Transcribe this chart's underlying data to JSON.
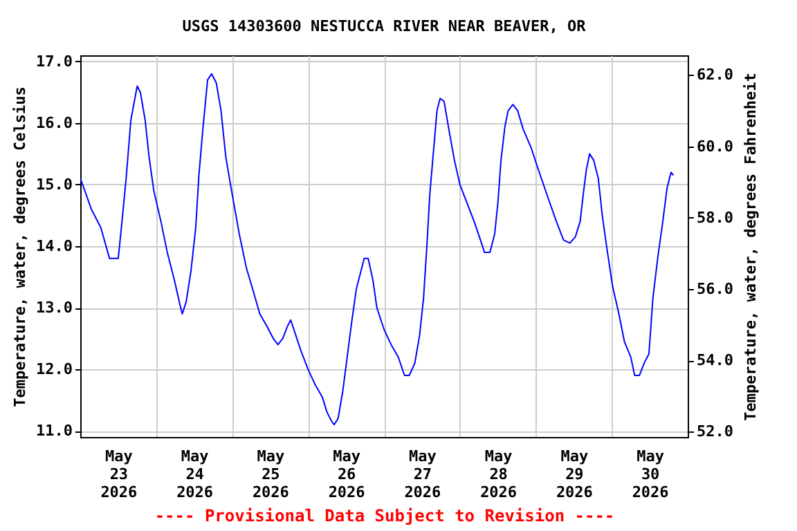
{
  "chart_data": {
    "type": "line",
    "title": "USGS 14303600 NESTUCCA RIVER NEAR BEAVER, OR",
    "ylabel": "Temperature, water, degrees Celsius",
    "y2label": "Temperature, water, degrees Fahrenheit",
    "annotations": [
      "---- Provisional Data Subject to Revision ----"
    ],
    "x": [
      "2026-05-23T00:00",
      "2026-05-23T00:45",
      "2026-05-23T03:30",
      "2026-05-23T06:30",
      "2026-05-23T09:15",
      "2026-05-23T12:00",
      "2026-05-23T13:00",
      "2026-05-23T14:30",
      "2026-05-23T16:00",
      "2026-05-23T18:00",
      "2026-05-23T19:00",
      "2026-05-23T20:30",
      "2026-05-23T21:45",
      "2026-05-23T23:15",
      "2026-05-24T01:30",
      "2026-05-24T03:30",
      "2026-05-24T05:45",
      "2026-05-24T07:30",
      "2026-05-24T08:15",
      "2026-05-24T09:30",
      "2026-05-24T11:00",
      "2026-05-24T12:30",
      "2026-05-24T13:30",
      "2026-05-24T14:45",
      "2026-05-24T16:15",
      "2026-05-24T17:30",
      "2026-05-24T19:00",
      "2026-05-24T20:30",
      "2026-05-24T22:00",
      "2026-05-25T00:00",
      "2026-05-25T02:15",
      "2026-05-25T04:30",
      "2026-05-25T06:30",
      "2026-05-25T08:45",
      "2026-05-25T11:00",
      "2026-05-25T13:00",
      "2026-05-25T14:30",
      "2026-05-25T16:00",
      "2026-05-25T17:30",
      "2026-05-25T18:30",
      "2026-05-25T19:30",
      "2026-05-25T21:45",
      "2026-05-26T00:00",
      "2026-05-26T02:15",
      "2026-05-26T04:30",
      "2026-05-26T06:00",
      "2026-05-26T07:30",
      "2026-05-26T08:15",
      "2026-05-26T09:30",
      "2026-05-26T11:00",
      "2026-05-26T12:30",
      "2026-05-26T13:45",
      "2026-05-26T15:15",
      "2026-05-26T16:45",
      "2026-05-26T17:45",
      "2026-05-26T19:00",
      "2026-05-26T20:30",
      "2026-05-26T21:45",
      "2026-05-27T00:00",
      "2026-05-27T02:15",
      "2026-05-27T04:30",
      "2026-05-27T06:30",
      "2026-05-27T08:00",
      "2026-05-27T09:45",
      "2026-05-27T11:15",
      "2026-05-27T12:30",
      "2026-05-27T13:30",
      "2026-05-27T14:30",
      "2026-05-27T15:45",
      "2026-05-27T16:45",
      "2026-05-27T17:45",
      "2026-05-27T19:00",
      "2026-05-27T20:30",
      "2026-05-27T22:15",
      "2026-05-28T00:00",
      "2026-05-28T02:15",
      "2026-05-28T04:30",
      "2026-05-28T06:30",
      "2026-05-28T07:45",
      "2026-05-28T09:30",
      "2026-05-28T11:00",
      "2026-05-28T12:00",
      "2026-05-28T13:00",
      "2026-05-28T14:15",
      "2026-05-28T15:15",
      "2026-05-28T16:45",
      "2026-05-28T18:15",
      "2026-05-28T20:00",
      "2026-05-28T22:30",
      "2026-05-29T00:45",
      "2026-05-29T03:45",
      "2026-05-29T06:30",
      "2026-05-29T08:45",
      "2026-05-29T10:45",
      "2026-05-29T12:30",
      "2026-05-29T14:00",
      "2026-05-29T15:00",
      "2026-05-29T16:00",
      "2026-05-29T17:00",
      "2026-05-29T18:15",
      "2026-05-29T19:45",
      "2026-05-29T21:00",
      "2026-05-29T22:30",
      "2026-05-30T00:15",
      "2026-05-30T02:15",
      "2026-05-30T04:00",
      "2026-05-30T06:00",
      "2026-05-30T07:15",
      "2026-05-30T08:45",
      "2026-05-30T10:15",
      "2026-05-30T11:45",
      "2026-05-30T13:00",
      "2026-05-30T14:30",
      "2026-05-30T16:00",
      "2026-05-30T17:30",
      "2026-05-30T18:45",
      "2026-05-30T19:30"
    ],
    "series": [
      {
        "color": "#0000ff",
        "values": [
          15.1,
          15.0,
          14.6,
          14.3,
          13.8,
          13.8,
          14.3,
          15.1,
          16.05,
          16.6,
          16.5,
          16.05,
          15.45,
          14.9,
          14.4,
          13.9,
          13.45,
          13.05,
          12.9,
          13.1,
          13.6,
          14.3,
          15.15,
          15.9,
          16.7,
          16.8,
          16.65,
          16.2,
          15.45,
          14.85,
          14.2,
          13.65,
          13.3,
          12.9,
          12.7,
          12.5,
          12.4,
          12.5,
          12.7,
          12.8,
          12.65,
          12.3,
          12.0,
          11.75,
          11.55,
          11.3,
          11.15,
          11.1,
          11.2,
          11.65,
          12.25,
          12.75,
          13.3,
          13.6,
          13.8,
          13.8,
          13.45,
          13.0,
          12.65,
          12.4,
          12.2,
          11.9,
          11.9,
          12.1,
          12.55,
          13.15,
          13.95,
          14.85,
          15.6,
          16.2,
          16.4,
          16.35,
          15.9,
          15.4,
          15.0,
          14.7,
          14.4,
          14.1,
          13.9,
          13.9,
          14.2,
          14.7,
          15.4,
          15.95,
          16.2,
          16.3,
          16.2,
          15.9,
          15.6,
          15.25,
          14.8,
          14.4,
          14.1,
          14.05,
          14.15,
          14.4,
          14.85,
          15.25,
          15.5,
          15.4,
          15.1,
          14.5,
          13.95,
          13.35,
          12.9,
          12.45,
          12.2,
          11.9,
          11.9,
          12.1,
          12.25,
          13.15,
          13.8,
          14.35,
          14.95,
          15.2,
          15.15
        ]
      }
    ],
    "xlim": [
      "2026-05-23T00:00",
      "2026-05-31T00:00"
    ],
    "xticks": [
      {
        "value": "2026-05-23T00:00",
        "label": null
      },
      {
        "value": "2026-05-23T12:00",
        "label": "May\n23\n2026"
      },
      {
        "value": "2026-05-24T00:00",
        "label": null
      },
      {
        "value": "2026-05-24T12:00",
        "label": "May\n24\n2026"
      },
      {
        "value": "2026-05-25T00:00",
        "label": null
      },
      {
        "value": "2026-05-25T12:00",
        "label": "May\n25\n2026"
      },
      {
        "value": "2026-05-26T00:00",
        "label": null
      },
      {
        "value": "2026-05-26T12:00",
        "label": "May\n26\n2026"
      },
      {
        "value": "2026-05-27T00:00",
        "label": null
      },
      {
        "value": "2026-05-27T12:00",
        "label": "May\n27\n2026"
      },
      {
        "value": "2026-05-28T00:00",
        "label": null
      },
      {
        "value": "2026-05-28T12:00",
        "label": "May\n28\n2026"
      },
      {
        "value": "2026-05-29T00:00",
        "label": null
      },
      {
        "value": "2026-05-29T12:00",
        "label": "May\n29\n2026"
      },
      {
        "value": "2026-05-30T00:00",
        "label": null
      },
      {
        "value": "2026-05-30T12:00",
        "label": "May\n30\n2026"
      },
      {
        "value": "2026-05-31T00:00",
        "label": null
      }
    ],
    "ylim": [
      10.9,
      17.1
    ],
    "yticks": [
      {
        "value": 11,
        "label": "11.0"
      },
      {
        "value": 12,
        "label": "12.0"
      },
      {
        "value": 13,
        "label": "13.0"
      },
      {
        "value": 14,
        "label": "14.0"
      },
      {
        "value": 15,
        "label": "15.0"
      },
      {
        "value": 16,
        "label": "16.0"
      },
      {
        "value": 17,
        "label": "17.0"
      }
    ],
    "y2lim": [
      51.85,
      62.55
    ],
    "y2ticks": [
      {
        "value": 52,
        "label": "52.0"
      },
      {
        "value": 54,
        "label": "54.0"
      },
      {
        "value": 56,
        "label": "56.0"
      },
      {
        "value": 58,
        "label": "58.0"
      },
      {
        "value": 60,
        "label": "60.0"
      },
      {
        "value": 62,
        "label": "62.0"
      }
    ],
    "grid": true
  }
}
